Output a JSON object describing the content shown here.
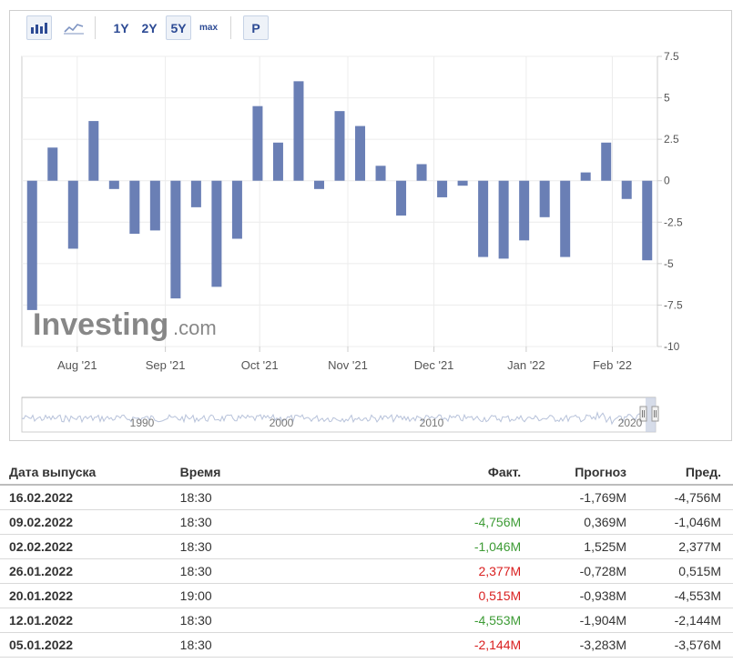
{
  "toolbar": {
    "bar_icon": "bar-chart-icon",
    "line_icon": "line-chart-icon",
    "ranges": [
      "1Y",
      "2Y",
      "5Y",
      "max"
    ],
    "active_range": "5Y",
    "p_button": "P"
  },
  "watermark": {
    "brand": "Investing",
    "suffix": ".com"
  },
  "navigator": {
    "year_labels": [
      "1990",
      "2000",
      "2010",
      "2020"
    ]
  },
  "chart_data": {
    "type": "bar",
    "values": [
      -7.8,
      2.0,
      -4.1,
      3.6,
      -0.5,
      -3.2,
      -3.0,
      -7.1,
      -1.6,
      -6.4,
      -3.5,
      4.5,
      2.3,
      6.0,
      -0.5,
      4.2,
      3.3,
      0.9,
      -2.1,
      1.0,
      -1.0,
      -0.3,
      -4.6,
      -4.7,
      -3.6,
      -2.2,
      -4.6,
      0.5,
      2.3,
      -1.1,
      -4.8
    ],
    "x_tick_labels": [
      "Aug '21",
      "Sep '21",
      "Oct '21",
      "Nov '21",
      "Dec '21",
      "Jan '22",
      "Feb '22"
    ],
    "y_ticks": [
      "7.5",
      "5",
      "2.5",
      "0",
      "-2.5",
      "-5",
      "-7.5",
      "-10"
    ],
    "ylim": [
      -10,
      7.5
    ],
    "grid": true,
    "bar_color": "#6a7fb5"
  },
  "table": {
    "headers": [
      "Дата выпуска",
      "Время",
      "Факт.",
      "Прогноз",
      "Пред."
    ],
    "rows": [
      {
        "date": "16.02.2022",
        "time": "18:30",
        "actual": "",
        "forecast": "-1,769M",
        "previous": "-4,756M",
        "trend": ""
      },
      {
        "date": "09.02.2022",
        "time": "18:30",
        "actual": "-4,756M",
        "forecast": "0,369M",
        "previous": "-1,046M",
        "trend": "pos"
      },
      {
        "date": "02.02.2022",
        "time": "18:30",
        "actual": "-1,046M",
        "forecast": "1,525M",
        "previous": "2,377M",
        "trend": "pos"
      },
      {
        "date": "26.01.2022",
        "time": "18:30",
        "actual": "2,377M",
        "forecast": "-0,728M",
        "previous": "0,515M",
        "trend": "neg"
      },
      {
        "date": "20.01.2022",
        "time": "19:00",
        "actual": "0,515M",
        "forecast": "-0,938M",
        "previous": "-4,553M",
        "trend": "neg"
      },
      {
        "date": "12.01.2022",
        "time": "18:30",
        "actual": "-4,553M",
        "forecast": "-1,904M",
        "previous": "-2,144M",
        "trend": "pos"
      },
      {
        "date": "05.01.2022",
        "time": "18:30",
        "actual": "-2,144M",
        "forecast": "-3,283M",
        "previous": "-3,576M",
        "trend": "neg"
      }
    ]
  }
}
